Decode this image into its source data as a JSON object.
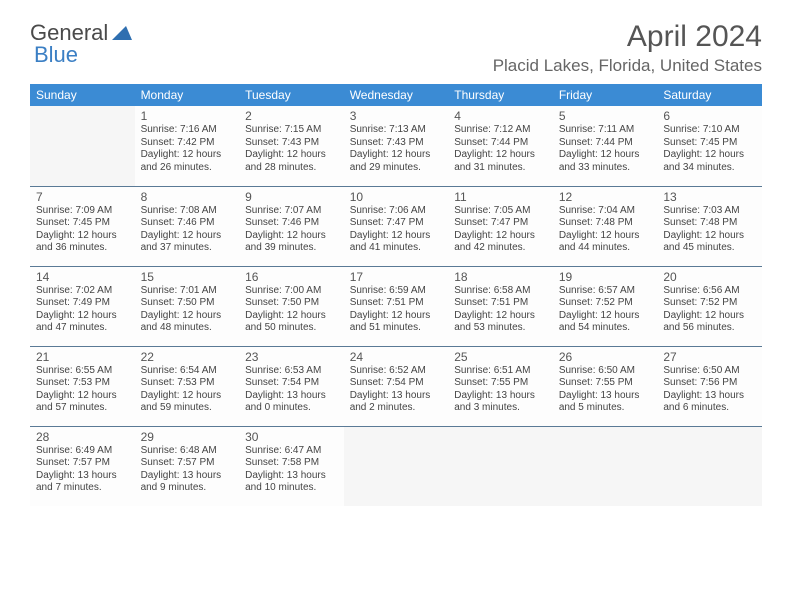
{
  "brand": {
    "part1": "General",
    "part2": "Blue"
  },
  "title": "April 2024",
  "location": "Placid Lakes, Florida, United States",
  "colors": {
    "header_bg": "#3b8bd4",
    "header_text": "#ffffff",
    "border": "#5a7a96",
    "brand_blue": "#3b7fc4",
    "text": "#3a3a3a",
    "empty_bg": "#f6f6f6",
    "page_bg": "#ffffff"
  },
  "day_headers": [
    "Sunday",
    "Monday",
    "Tuesday",
    "Wednesday",
    "Thursday",
    "Friday",
    "Saturday"
  ],
  "weeks": [
    [
      {
        "empty": true
      },
      {
        "num": "1",
        "sunrise": "Sunrise: 7:16 AM",
        "sunset": "Sunset: 7:42 PM",
        "day1": "Daylight: 12 hours",
        "day2": "and 26 minutes."
      },
      {
        "num": "2",
        "sunrise": "Sunrise: 7:15 AM",
        "sunset": "Sunset: 7:43 PM",
        "day1": "Daylight: 12 hours",
        "day2": "and 28 minutes."
      },
      {
        "num": "3",
        "sunrise": "Sunrise: 7:13 AM",
        "sunset": "Sunset: 7:43 PM",
        "day1": "Daylight: 12 hours",
        "day2": "and 29 minutes."
      },
      {
        "num": "4",
        "sunrise": "Sunrise: 7:12 AM",
        "sunset": "Sunset: 7:44 PM",
        "day1": "Daylight: 12 hours",
        "day2": "and 31 minutes."
      },
      {
        "num": "5",
        "sunrise": "Sunrise: 7:11 AM",
        "sunset": "Sunset: 7:44 PM",
        "day1": "Daylight: 12 hours",
        "day2": "and 33 minutes."
      },
      {
        "num": "6",
        "sunrise": "Sunrise: 7:10 AM",
        "sunset": "Sunset: 7:45 PM",
        "day1": "Daylight: 12 hours",
        "day2": "and 34 minutes."
      }
    ],
    [
      {
        "num": "7",
        "sunrise": "Sunrise: 7:09 AM",
        "sunset": "Sunset: 7:45 PM",
        "day1": "Daylight: 12 hours",
        "day2": "and 36 minutes."
      },
      {
        "num": "8",
        "sunrise": "Sunrise: 7:08 AM",
        "sunset": "Sunset: 7:46 PM",
        "day1": "Daylight: 12 hours",
        "day2": "and 37 minutes."
      },
      {
        "num": "9",
        "sunrise": "Sunrise: 7:07 AM",
        "sunset": "Sunset: 7:46 PM",
        "day1": "Daylight: 12 hours",
        "day2": "and 39 minutes."
      },
      {
        "num": "10",
        "sunrise": "Sunrise: 7:06 AM",
        "sunset": "Sunset: 7:47 PM",
        "day1": "Daylight: 12 hours",
        "day2": "and 41 minutes."
      },
      {
        "num": "11",
        "sunrise": "Sunrise: 7:05 AM",
        "sunset": "Sunset: 7:47 PM",
        "day1": "Daylight: 12 hours",
        "day2": "and 42 minutes."
      },
      {
        "num": "12",
        "sunrise": "Sunrise: 7:04 AM",
        "sunset": "Sunset: 7:48 PM",
        "day1": "Daylight: 12 hours",
        "day2": "and 44 minutes."
      },
      {
        "num": "13",
        "sunrise": "Sunrise: 7:03 AM",
        "sunset": "Sunset: 7:48 PM",
        "day1": "Daylight: 12 hours",
        "day2": "and 45 minutes."
      }
    ],
    [
      {
        "num": "14",
        "sunrise": "Sunrise: 7:02 AM",
        "sunset": "Sunset: 7:49 PM",
        "day1": "Daylight: 12 hours",
        "day2": "and 47 minutes."
      },
      {
        "num": "15",
        "sunrise": "Sunrise: 7:01 AM",
        "sunset": "Sunset: 7:50 PM",
        "day1": "Daylight: 12 hours",
        "day2": "and 48 minutes."
      },
      {
        "num": "16",
        "sunrise": "Sunrise: 7:00 AM",
        "sunset": "Sunset: 7:50 PM",
        "day1": "Daylight: 12 hours",
        "day2": "and 50 minutes."
      },
      {
        "num": "17",
        "sunrise": "Sunrise: 6:59 AM",
        "sunset": "Sunset: 7:51 PM",
        "day1": "Daylight: 12 hours",
        "day2": "and 51 minutes."
      },
      {
        "num": "18",
        "sunrise": "Sunrise: 6:58 AM",
        "sunset": "Sunset: 7:51 PM",
        "day1": "Daylight: 12 hours",
        "day2": "and 53 minutes."
      },
      {
        "num": "19",
        "sunrise": "Sunrise: 6:57 AM",
        "sunset": "Sunset: 7:52 PM",
        "day1": "Daylight: 12 hours",
        "day2": "and 54 minutes."
      },
      {
        "num": "20",
        "sunrise": "Sunrise: 6:56 AM",
        "sunset": "Sunset: 7:52 PM",
        "day1": "Daylight: 12 hours",
        "day2": "and 56 minutes."
      }
    ],
    [
      {
        "num": "21",
        "sunrise": "Sunrise: 6:55 AM",
        "sunset": "Sunset: 7:53 PM",
        "day1": "Daylight: 12 hours",
        "day2": "and 57 minutes."
      },
      {
        "num": "22",
        "sunrise": "Sunrise: 6:54 AM",
        "sunset": "Sunset: 7:53 PM",
        "day1": "Daylight: 12 hours",
        "day2": "and 59 minutes."
      },
      {
        "num": "23",
        "sunrise": "Sunrise: 6:53 AM",
        "sunset": "Sunset: 7:54 PM",
        "day1": "Daylight: 13 hours",
        "day2": "and 0 minutes."
      },
      {
        "num": "24",
        "sunrise": "Sunrise: 6:52 AM",
        "sunset": "Sunset: 7:54 PM",
        "day1": "Daylight: 13 hours",
        "day2": "and 2 minutes."
      },
      {
        "num": "25",
        "sunrise": "Sunrise: 6:51 AM",
        "sunset": "Sunset: 7:55 PM",
        "day1": "Daylight: 13 hours",
        "day2": "and 3 minutes."
      },
      {
        "num": "26",
        "sunrise": "Sunrise: 6:50 AM",
        "sunset": "Sunset: 7:55 PM",
        "day1": "Daylight: 13 hours",
        "day2": "and 5 minutes."
      },
      {
        "num": "27",
        "sunrise": "Sunrise: 6:50 AM",
        "sunset": "Sunset: 7:56 PM",
        "day1": "Daylight: 13 hours",
        "day2": "and 6 minutes."
      }
    ],
    [
      {
        "num": "28",
        "sunrise": "Sunrise: 6:49 AM",
        "sunset": "Sunset: 7:57 PM",
        "day1": "Daylight: 13 hours",
        "day2": "and 7 minutes."
      },
      {
        "num": "29",
        "sunrise": "Sunrise: 6:48 AM",
        "sunset": "Sunset: 7:57 PM",
        "day1": "Daylight: 13 hours",
        "day2": "and 9 minutes."
      },
      {
        "num": "30",
        "sunrise": "Sunrise: 6:47 AM",
        "sunset": "Sunset: 7:58 PM",
        "day1": "Daylight: 13 hours",
        "day2": "and 10 minutes."
      },
      {
        "empty": true
      },
      {
        "empty": true
      },
      {
        "empty": true
      },
      {
        "empty": true
      }
    ]
  ]
}
